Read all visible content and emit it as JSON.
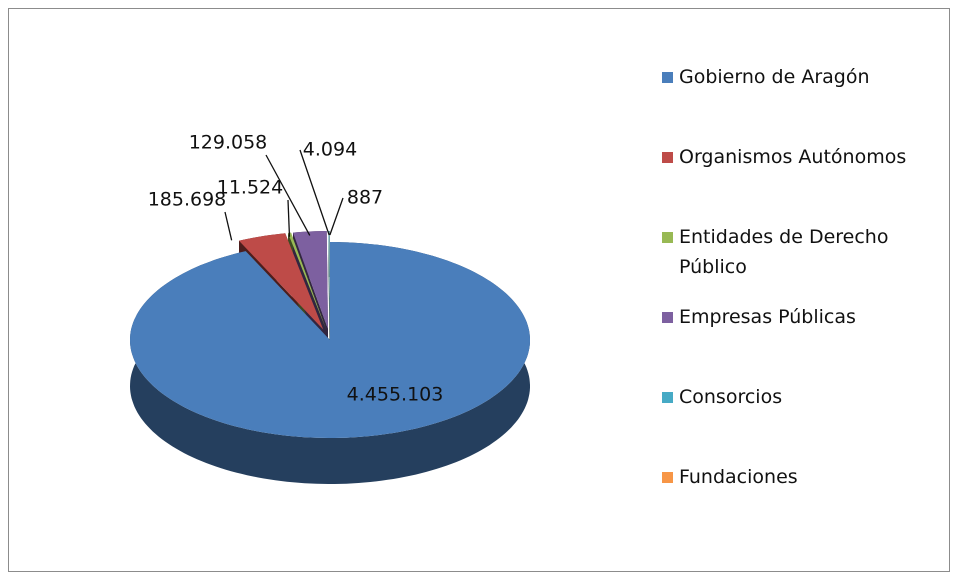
{
  "chart_data": {
    "type": "pie",
    "categories": [
      "Gobierno de Aragón",
      "Organismos Autónomos",
      "Entidades de Derecho Público",
      "Empresas Públicas",
      "Consorcios",
      "Fundaciones"
    ],
    "values": [
      4455103,
      185698,
      11524,
      129058,
      4094,
      887
    ],
    "value_labels": [
      "4.455.103",
      "185.698",
      "11.524",
      "129.058",
      "4.094",
      "887"
    ],
    "colors": [
      "#4a7ebb",
      "#be4b48",
      "#98b954",
      "#7d60a0",
      "#46aac5",
      "#f79646"
    ],
    "legend": "right"
  }
}
